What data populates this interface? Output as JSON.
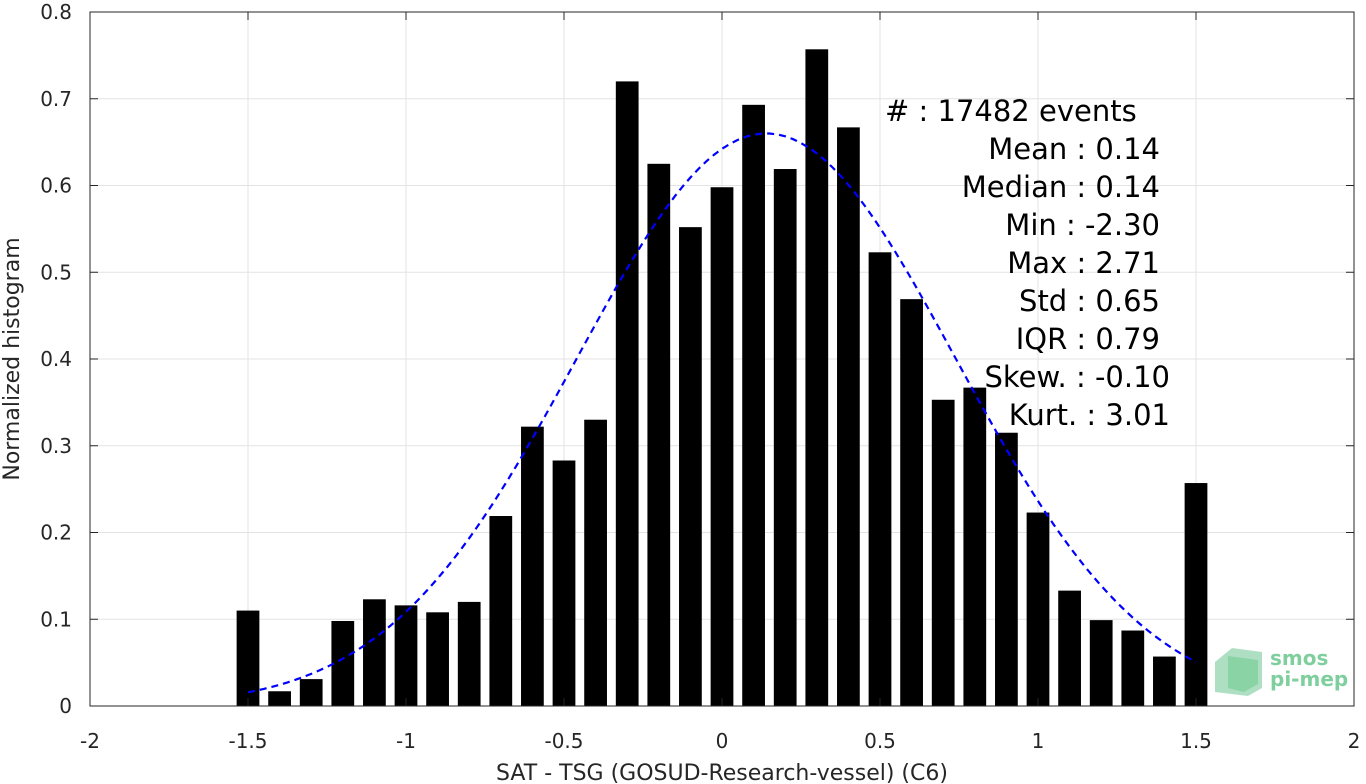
{
  "chart_data": {
    "type": "bar",
    "xlabel": "SAT - TSG (GOSUD-Research-vessel) (C6)",
    "ylabel": "Normalized histogram",
    "xlim": [
      -2,
      2
    ],
    "ylim": [
      0,
      0.8
    ],
    "xticks": [
      -2,
      -1.5,
      -1,
      -0.5,
      0,
      0.5,
      1,
      1.5,
      2
    ],
    "xtick_labels": [
      "-2",
      "-1.5",
      "-1",
      "-0.5",
      "0",
      "0.5",
      "1",
      "1.5",
      "2"
    ],
    "yticks": [
      0,
      0.1,
      0.2,
      0.3,
      0.4,
      0.5,
      0.6,
      0.7,
      0.8
    ],
    "ytick_labels": [
      "0",
      "0.1",
      "0.2",
      "0.3",
      "0.4",
      "0.5",
      "0.6",
      "0.7",
      "0.8"
    ],
    "grid": true,
    "bar_color": "#000000",
    "bin_width": 0.1,
    "x": [
      -1.5,
      -1.4,
      -1.3,
      -1.2,
      -1.1,
      -1.0,
      -0.9,
      -0.8,
      -0.7,
      -0.6,
      -0.5,
      -0.4,
      -0.3,
      -0.2,
      -0.1,
      0.0,
      0.1,
      0.2,
      0.3,
      0.4,
      0.5,
      0.6,
      0.7,
      0.8,
      0.9,
      1.0,
      1.1,
      1.2,
      1.3,
      1.4,
      1.5
    ],
    "values": [
      0.11,
      0.017,
      0.031,
      0.098,
      0.123,
      0.116,
      0.108,
      0.12,
      0.219,
      0.322,
      0.283,
      0.33,
      0.72,
      0.625,
      0.552,
      0.598,
      0.693,
      0.619,
      0.757,
      0.667,
      0.523,
      0.469,
      0.353,
      0.367,
      0.315,
      0.223,
      0.133,
      0.099,
      0.087,
      0.057,
      0.257
    ],
    "fit": {
      "type": "gaussian",
      "color": "#0000ff",
      "style": "dashed",
      "mean": 0.14,
      "std": 0.6,
      "peak": 0.66,
      "x_range": [
        -1.5,
        1.5
      ]
    },
    "stats": [
      "#  : 17482 events",
      "Mean : 0.14",
      "Median : 0.14",
      "Min : -2.30",
      "Max : 2.71",
      "Std : 0.65",
      "IQR : 0.79",
      "Skew. : -0.10",
      "Kurt. : 3.01"
    ]
  },
  "logo": {
    "line1": "smos",
    "line2": "pi-mep",
    "color": "#7fcf9e"
  }
}
